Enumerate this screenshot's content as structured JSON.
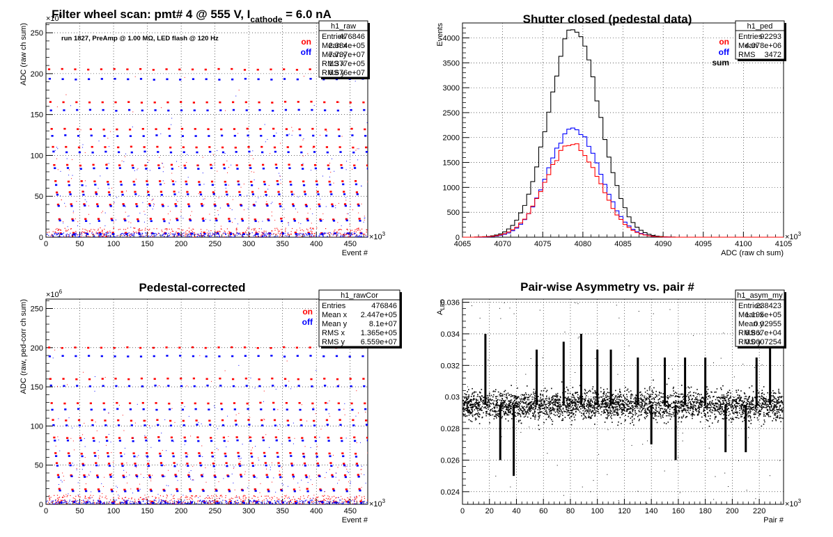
{
  "chart_data": [
    {
      "id": "raw",
      "type": "scatter",
      "title": "Filter wheel scan: pmt#   4 @   555 V, I",
      "title_sub": "cathode",
      "title_tail": "  = 6.0 nA",
      "note": "run 1827, PreAmp @ 1.00 MΩ, LED flash @  120 Hz",
      "xlabel": "Event #",
      "ylabel": "ADC (raw ch sum)",
      "x_exponent_label": "×10",
      "x_exponent": "3",
      "y_exponent_label": "×10",
      "y_exponent": "6",
      "xlim": [
        0,
        476
      ],
      "ylim": [
        0,
        262
      ],
      "xticks": [
        0,
        50,
        100,
        150,
        200,
        250,
        300,
        350,
        400,
        450
      ],
      "yticks": [
        0,
        50,
        100,
        150,
        200,
        250
      ],
      "grid": true,
      "legend": [
        {
          "label": "on",
          "color": "#ff0000"
        },
        {
          "label": "off",
          "color": "#0000ff"
        }
      ],
      "series": [
        {
          "name": "on",
          "color": "#ff0000",
          "levels": [
            205,
            165,
            132,
            110,
            88,
            68,
            55,
            40,
            22,
            5
          ]
        },
        {
          "name": "off",
          "color": "#0000ff",
          "levels": [
            193,
            155,
            124,
            104,
            84,
            64,
            52,
            38,
            20,
            4
          ]
        }
      ],
      "statbox": {
        "name": "h1_raw",
        "rows": [
          {
            "label": "Entries",
            "value": "476846"
          },
          {
            "label": "Mean x",
            "value": "2.384e+05"
          },
          {
            "label": "Mean y",
            "value": "7.737e+07"
          },
          {
            "label": "RMS x",
            "value": "1.377e+05"
          },
          {
            "label": "RMS y",
            "value": "6.676e+07"
          }
        ]
      }
    },
    {
      "id": "ped",
      "type": "line",
      "title": "Shutter closed (pedestal data)",
      "xlabel": "ADC (raw ch sum)",
      "ylabel": "Events",
      "x_exponent_label": "×10",
      "x_exponent": "3",
      "xlim": [
        4065,
        4105
      ],
      "ylim": [
        0,
        4300
      ],
      "xticks": [
        4065,
        4070,
        4075,
        4080,
        4085,
        4090,
        4095,
        4100,
        4105
      ],
      "yticks": [
        0,
        500,
        1000,
        1500,
        2000,
        2500,
        3000,
        3500,
        4000
      ],
      "grid": true,
      "legend": [
        {
          "label": "on",
          "color": "#ff0000"
        },
        {
          "label": "off",
          "color": "#0000ff"
        },
        {
          "label": "sum",
          "color": "#000000"
        }
      ],
      "series": [
        {
          "name": "sum",
          "color": "#000000",
          "mean": 4078.9,
          "sigma": 3.2,
          "peak": 4130
        },
        {
          "name": "off",
          "color": "#0000ff",
          "mean": 4078.9,
          "sigma": 3.2,
          "peak": 2200
        },
        {
          "name": "on",
          "color": "#ff0000",
          "mean": 4078.7,
          "sigma": 3.3,
          "peak": 1880
        }
      ],
      "statbox": {
        "name": "h1_ped",
        "rows": [
          {
            "label": "Entries",
            "value": "92293"
          },
          {
            "label": "Mean",
            "value": "4.078e+06"
          },
          {
            "label": "RMS",
            "value": "3472"
          }
        ]
      }
    },
    {
      "id": "rawcor",
      "type": "scatter",
      "title": "Pedestal-corrected",
      "xlabel": "Event #",
      "ylabel": "ADC (raw, ped-corr ch sum)",
      "x_exponent_label": "×10",
      "x_exponent": "3",
      "y_exponent_label": "×10",
      "y_exponent": "6",
      "xlim": [
        0,
        476
      ],
      "ylim": [
        0,
        262
      ],
      "xticks": [
        0,
        50,
        100,
        150,
        200,
        250,
        300,
        350,
        400,
        450
      ],
      "yticks": [
        0,
        50,
        100,
        150,
        200,
        250
      ],
      "grid": true,
      "legend": [
        {
          "label": "on",
          "color": "#ff0000"
        },
        {
          "label": "off",
          "color": "#0000ff"
        }
      ],
      "series": [
        {
          "name": "on",
          "color": "#ff0000",
          "levels": [
            200,
            160,
            129,
            107,
            85,
            65,
            52,
            37,
            19,
            3
          ]
        },
        {
          "name": "off",
          "color": "#0000ff",
          "levels": [
            189,
            151,
            121,
            101,
            81,
            61,
            49,
            35,
            17,
            2
          ]
        }
      ],
      "statbox": {
        "name": "h1_rawCor",
        "rows": [
          {
            "label": "Entries",
            "value": "476846"
          },
          {
            "label": "Mean x",
            "value": "2.447e+05"
          },
          {
            "label": "Mean y",
            "value": "8.1e+07"
          },
          {
            "label": "RMS x",
            "value": "1.365e+05"
          },
          {
            "label": "RMS y",
            "value": "6.559e+07"
          }
        ]
      }
    },
    {
      "id": "asym",
      "type": "scatter",
      "title": "Pair-wise Asymmetry vs. pair #",
      "xlabel": "Pair #",
      "ylabel": "A",
      "ylabel_sub": "LED",
      "x_exponent_label": "×10",
      "x_exponent": "3",
      "xlim": [
        0,
        238
      ],
      "ylim": [
        0.0232,
        0.0362
      ],
      "xticks": [
        0,
        20,
        40,
        60,
        80,
        100,
        120,
        140,
        160,
        180,
        200,
        220
      ],
      "yticks": [
        0.024,
        0.026,
        0.028,
        0.03,
        0.032,
        0.034,
        0.036
      ],
      "ytick_labels": [
        "0.024",
        "0.026",
        "0.028",
        "0.03",
        "0.032",
        "0.034",
        "0.036"
      ],
      "grid": true,
      "band": {
        "center": 0.0295,
        "halfwidth": 0.0009
      },
      "spikes": [
        {
          "x": 17,
          "dir": 1,
          "len": 0.0045
        },
        {
          "x": 28,
          "dir": -1,
          "len": 0.0035
        },
        {
          "x": 38,
          "dir": -1,
          "len": 0.0045
        },
        {
          "x": 55,
          "dir": 1,
          "len": 0.0035
        },
        {
          "x": 75,
          "dir": 1,
          "len": 0.004
        },
        {
          "x": 88,
          "dir": 1,
          "len": 0.0045
        },
        {
          "x": 100,
          "dir": 1,
          "len": 0.0035
        },
        {
          "x": 110,
          "dir": 1,
          "len": 0.0035
        },
        {
          "x": 130,
          "dir": 1,
          "len": 0.003
        },
        {
          "x": 140,
          "dir": -1,
          "len": 0.0025
        },
        {
          "x": 150,
          "dir": 1,
          "len": 0.003
        },
        {
          "x": 158,
          "dir": -1,
          "len": 0.0035
        },
        {
          "x": 165,
          "dir": 1,
          "len": 0.003
        },
        {
          "x": 180,
          "dir": 1,
          "len": 0.003
        },
        {
          "x": 195,
          "dir": -1,
          "len": 0.003
        },
        {
          "x": 210,
          "dir": -1,
          "len": 0.003
        },
        {
          "x": 218,
          "dir": 1,
          "len": 0.003
        },
        {
          "x": 228,
          "dir": 1,
          "len": 0.0045
        }
      ],
      "statbox": {
        "name": "h1_asym_my",
        "rows": [
          {
            "label": "Entries",
            "value": "238423"
          },
          {
            "label": "Mean x",
            "value": "1.195e+05"
          },
          {
            "label": "Mean y",
            "value": "0.02955"
          },
          {
            "label": "RMS x",
            "value": "6.867e+04"
          },
          {
            "label": "RMS y",
            "value": "0.0007254"
          }
        ]
      }
    }
  ]
}
